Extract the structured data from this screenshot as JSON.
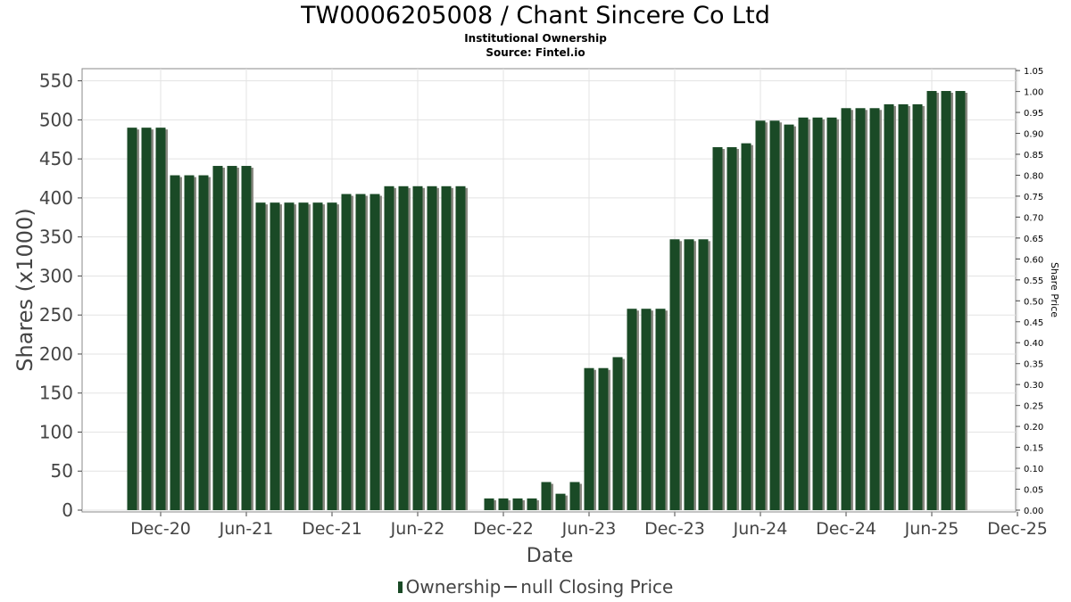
{
  "chart_data": {
    "type": "bar",
    "title": "TW0006205008 / Chant Sincere Co Ltd",
    "subtitle": "Institutional Ownership",
    "source": "Source: Fintel.io",
    "xlabel": "Date",
    "ylabel": "Shares (x1000)",
    "y2label": "Share Price",
    "ylim": [
      0,
      560
    ],
    "y2lim": [
      0,
      1.05
    ],
    "yticks": [
      "0",
      "50",
      "100",
      "150",
      "200",
      "250",
      "300",
      "350",
      "400",
      "450",
      "500",
      "550"
    ],
    "y2ticks": [
      "0.00",
      "0.05",
      "0.10",
      "0.15",
      "0.20",
      "0.25",
      "0.30",
      "0.35",
      "0.40",
      "0.45",
      "0.50",
      "0.55",
      "0.60",
      "0.65",
      "0.70",
      "0.75",
      "0.80",
      "0.85",
      "0.90",
      "0.95",
      "1.00",
      "1.05"
    ],
    "xticks": [
      "Dec-20",
      "Jun-21",
      "Dec-21",
      "Jun-22",
      "Dec-22",
      "Jun-23",
      "Dec-23",
      "Jun-24",
      "Dec-24",
      "Jun-25",
      "Dec-25"
    ],
    "grid": true,
    "legend_position": "bottom",
    "series": [
      {
        "name": "Ownership",
        "color": "#1a4a26",
        "x": [
          "2020-10",
          "2020-11",
          "2020-12",
          "2021-01",
          "2021-02",
          "2021-03",
          "2021-04",
          "2021-05",
          "2021-06",
          "2021-07",
          "2021-08",
          "2021-09",
          "2021-10",
          "2021-11",
          "2021-12",
          "2022-01",
          "2022-02",
          "2022-03",
          "2022-04",
          "2022-05",
          "2022-06",
          "2022-07",
          "2022-08",
          "2022-09",
          "2022-11",
          "2022-12",
          "2023-01",
          "2023-02",
          "2023-03",
          "2023-04",
          "2023-05",
          "2023-06",
          "2023-07",
          "2023-08",
          "2023-09",
          "2023-10",
          "2023-11",
          "2023-12",
          "2024-01",
          "2024-02",
          "2024-03",
          "2024-04",
          "2024-05",
          "2024-06",
          "2024-07",
          "2024-08",
          "2024-09",
          "2024-10",
          "2024-11",
          "2024-12",
          "2025-01",
          "2025-02",
          "2025-03",
          "2025-04",
          "2025-05",
          "2025-06",
          "2025-07",
          "2025-08",
          "2025-09"
        ],
        "values": [
          490,
          490,
          490,
          429,
          429,
          429,
          441,
          441,
          441,
          394,
          394,
          394,
          394,
          394,
          394,
          405,
          405,
          405,
          415,
          415,
          415,
          415,
          415,
          415,
          15,
          15,
          15,
          15,
          36,
          21,
          36,
          182,
          182,
          196,
          258,
          258,
          258,
          347,
          347,
          347,
          465,
          465,
          470,
          499,
          499,
          494,
          503,
          503,
          503,
          515,
          515,
          515,
          520,
          520,
          520,
          537,
          537,
          537,
          0
        ]
      }
    ],
    "legend": [
      "Ownership",
      "null Closing Price"
    ]
  }
}
